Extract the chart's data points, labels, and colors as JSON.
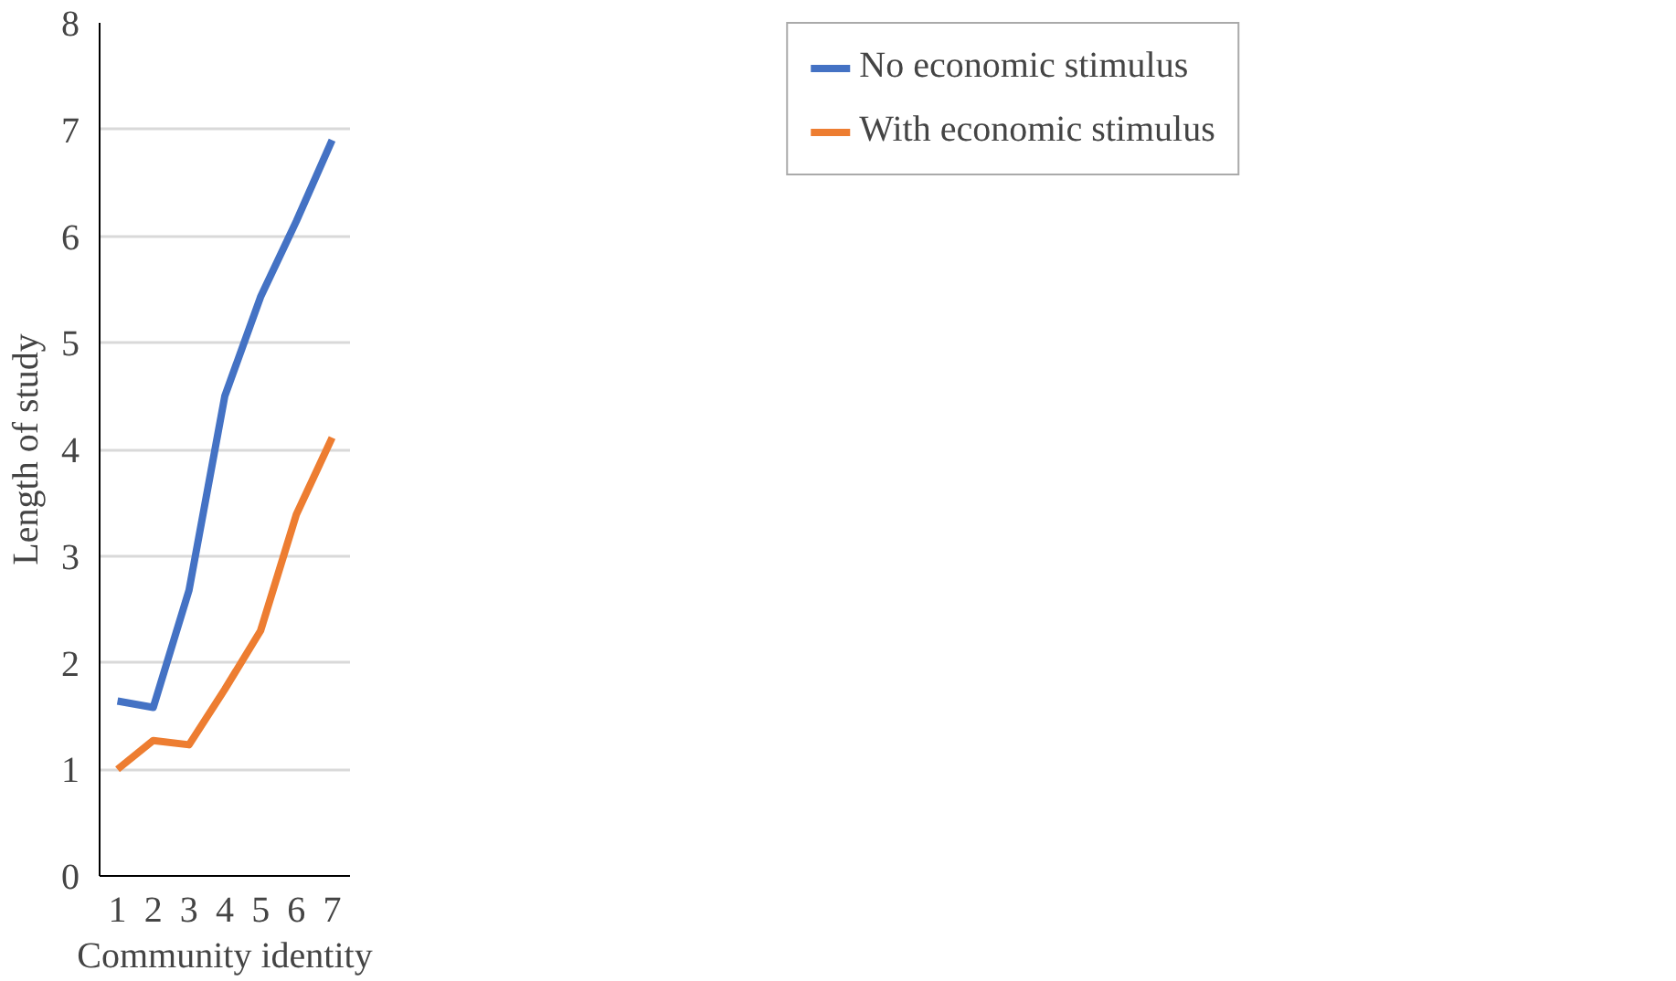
{
  "chart_data": {
    "type": "line",
    "xlabel": "Community identity",
    "ylabel": "Length of study",
    "categories": [
      "1",
      "2",
      "3",
      "4",
      "5",
      "6",
      "7"
    ],
    "series": [
      {
        "name": "No economic stimulus",
        "color": "#4472c4",
        "values": [
          1.64,
          1.58,
          2.68,
          4.5,
          5.43,
          6.14,
          6.9
        ]
      },
      {
        "name": "With economic stimulus",
        "color": "#ed7d31",
        "values": [
          1.0,
          1.27,
          1.23,
          1.75,
          2.3,
          3.39,
          4.11
        ]
      }
    ],
    "ylim": [
      0,
      8
    ],
    "yticks": [
      0,
      1,
      2,
      3,
      4,
      5,
      6,
      7,
      8
    ],
    "grid": "y",
    "legend": "right",
    "line_style": "solid"
  }
}
